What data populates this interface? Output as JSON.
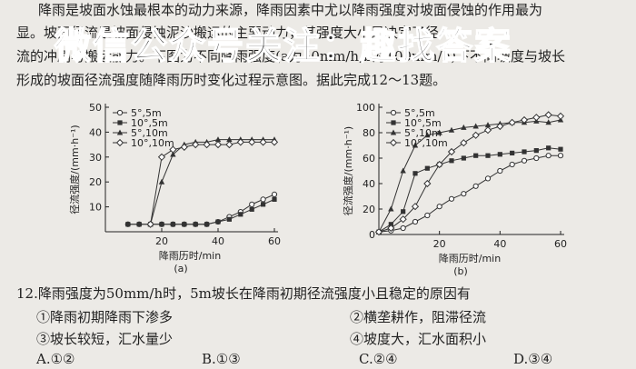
{
  "watermark": "微信公众号关注：趣找答案",
  "paragraph": {
    "lines": [
      "降雨是坡面水蚀最根本的动力来源，降雨因素中尤以降雨强度对坡面侵蚀的作用最为",
      "显。坡面径流是坡面侵蚀泥沙搬运的主要动力，其强度大小是决定了径",
      "流的冲刷与搬运能力。下图为不同降雨强度(a为50mm/h,b为100mm/h)下不同坡度与坡长",
      "形成的坡面径流强度随降雨历时变化过程示意图。据此完成12～13题。"
    ]
  },
  "chart_data": [
    {
      "type": "line",
      "caption": "(a)",
      "x_label": "降雨历时/min",
      "y_label": "径流强度/(mm·h⁻¹)",
      "xlim": [
        0,
        60
      ],
      "ylim": [
        0,
        50
      ],
      "xticks": [
        20,
        40,
        60
      ],
      "yticks": [
        10,
        20,
        30,
        40,
        50
      ],
      "x": [
        8,
        12,
        16,
        20,
        24,
        28,
        32,
        36,
        40,
        44,
        48,
        52,
        56,
        60
      ],
      "series": [
        {
          "name": "5°,5m",
          "color": "#333",
          "marker": "circle",
          "values": [
            3,
            3,
            3,
            3,
            3,
            3,
            3,
            3,
            4,
            6,
            8,
            11,
            13,
            15
          ]
        },
        {
          "name": "10°,5m",
          "color": "#333",
          "marker": "square",
          "values": [
            3,
            3,
            3,
            3,
            3,
            3,
            3,
            3,
            4,
            5,
            7,
            9,
            11,
            13
          ]
        },
        {
          "name": "5°,10m",
          "color": "#333",
          "marker": "triangle",
          "values": [
            null,
            null,
            3,
            20,
            31,
            35,
            36,
            36,
            37,
            37,
            37,
            37,
            37,
            37
          ]
        },
        {
          "name": "10°,10m",
          "color": "#333",
          "marker": "diamond",
          "values": [
            null,
            null,
            3,
            30,
            33,
            34,
            35,
            35,
            35,
            35,
            36,
            36,
            36,
            36
          ]
        }
      ]
    },
    {
      "type": "line",
      "caption": "(b)",
      "x_label": "降雨历时/min",
      "y_label": "径流强度/(mm·h⁻¹)",
      "xlim": [
        0,
        60
      ],
      "ylim": [
        0,
        100
      ],
      "xticks": [
        20,
        40,
        60
      ],
      "yticks": [
        0,
        20,
        40,
        60,
        80,
        100
      ],
      "x": [
        0,
        4,
        8,
        12,
        16,
        20,
        24,
        28,
        32,
        36,
        40,
        44,
        48,
        52,
        56,
        60
      ],
      "series": [
        {
          "name": "5°,5m",
          "color": "#333",
          "marker": "circle",
          "values": [
            2,
            3,
            5,
            10,
            15,
            22,
            28,
            32,
            38,
            44,
            50,
            55,
            58,
            60,
            62,
            62
          ]
        },
        {
          "name": "10°,5m",
          "color": "#333",
          "marker": "square",
          "values": [
            2,
            8,
            18,
            48,
            52,
            55,
            58,
            60,
            62,
            62,
            63,
            64,
            65,
            66,
            68,
            67
          ]
        },
        {
          "name": "5°,10m",
          "color": "#333",
          "marker": "triangle",
          "values": [
            2,
            20,
            50,
            70,
            78,
            80,
            82,
            84,
            85,
            86,
            87,
            88,
            88,
            89,
            88,
            90
          ]
        },
        {
          "name": "10°,10m",
          "color": "#333",
          "marker": "diamond",
          "values": [
            2,
            5,
            12,
            22,
            40,
            55,
            65,
            72,
            78,
            82,
            85,
            88,
            90,
            92,
            94,
            93
          ]
        }
      ]
    }
  ],
  "question": {
    "stem": "12.降雨强度为50mm/h时，5m坡长在降雨初期径流强度小且稳定的原因有",
    "items": [
      "①降雨初期降雨下渗多",
      "②横垄耕作，阻滞径流",
      "③坡长较短，汇水量少",
      "④坡度大，汇水面积小"
    ],
    "options": [
      "A.①②",
      "B.①③",
      "C.②④",
      "D.③④"
    ]
  }
}
